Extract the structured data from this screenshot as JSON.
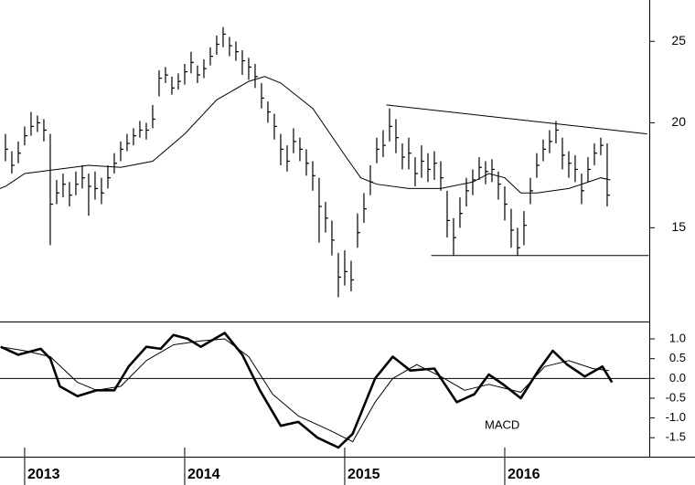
{
  "chart_data": [
    {
      "type": "ohlc",
      "log_scale": true,
      "color": "#000000",
      "xlim": [
        2012.846,
        2016.903
      ],
      "ylim": [
        11.6,
        28
      ],
      "yticks": [
        15,
        20,
        25
      ],
      "x": [
        2012.88,
        2012.92,
        2012.96,
        2013,
        2013.04,
        2013.08,
        2013.12,
        2013.16,
        2013.2,
        2013.24,
        2013.28,
        2013.32,
        2013.36,
        2013.4,
        2013.44,
        2013.48,
        2013.52,
        2013.56,
        2013.6,
        2013.64,
        2013.68,
        2013.72,
        2013.76,
        2013.8,
        2013.84,
        2013.88,
        2013.92,
        2013.96,
        2014,
        2014.04,
        2014.08,
        2014.12,
        2014.16,
        2014.2,
        2014.24,
        2014.28,
        2014.32,
        2014.36,
        2014.4,
        2014.44,
        2014.48,
        2014.52,
        2014.56,
        2014.6,
        2014.64,
        2014.68,
        2014.72,
        2014.76,
        2014.8,
        2014.84,
        2014.88,
        2014.92,
        2014.96,
        2015,
        2015.04,
        2015.08,
        2015.12,
        2015.16,
        2015.2,
        2015.24,
        2015.28,
        2015.32,
        2015.36,
        2015.4,
        2015.44,
        2015.48,
        2015.52,
        2015.56,
        2015.6,
        2015.64,
        2015.68,
        2015.72,
        2015.76,
        2015.8,
        2015.84,
        2015.88,
        2015.92,
        2015.96,
        2016,
        2016.04,
        2016.08,
        2016.12,
        2016.16,
        2016.2,
        2016.24,
        2016.28,
        2016.32,
        2016.36,
        2016.4,
        2016.44,
        2016.48,
        2016.52,
        2016.56,
        2016.6,
        2016.64
      ],
      "high": [
        19.4,
        18.5,
        19.0,
        19.8,
        20.6,
        20.4,
        20.2,
        19.4,
        17.1,
        17.4,
        17.0,
        17.5,
        17.8,
        17.4,
        17.5,
        17.2,
        17.8,
        18.4,
        19.0,
        19.4,
        19.7,
        20.1,
        20,
        21,
        23.1,
        23.3,
        22.7,
        22.9,
        23.5,
        24.3,
        23.4,
        23.8,
        24.6,
        25.4,
        26,
        25.3,
        25,
        24.4,
        23.9,
        23.5,
        22.3,
        21.2,
        20.5,
        19.4,
        18.8,
        19.7,
        19.2,
        18.6,
        18,
        17.2,
        16.1,
        15.3,
        14,
        14.1,
        13.7,
        15.6,
        16.5,
        17.8,
        19.2,
        19.6,
        20.8,
        20.2,
        18.9,
        19.2,
        18.2,
        18.8,
        18.4,
        18.5,
        18,
        16.6,
        15.4,
        16.3,
        17.2,
        17.6,
        18.2,
        18,
        18.1,
        17.5,
        16.8,
        15.8,
        15,
        15.7,
        17.2,
        18.4,
        19.1,
        19.6,
        20.1,
        19.2,
        18.5,
        18.3,
        17.4,
        18.2,
        18.9,
        19.2,
        18.9
      ],
      "low": [
        18,
        17.4,
        17.9,
        18.8,
        19.3,
        19.5,
        19,
        14.3,
        16,
        16.3,
        15.9,
        16.4,
        16.7,
        15.5,
        16.2,
        16,
        16.7,
        17.4,
        18,
        18.5,
        18.8,
        19.2,
        19.1,
        19.7,
        21.5,
        22.3,
        21.6,
        21.9,
        22.2,
        22.9,
        22.3,
        22.6,
        23.4,
        24.1,
        24.6,
        24,
        23.7,
        22.8,
        22.5,
        22,
        20.8,
        20,
        19.1,
        17.8,
        17.5,
        18.4,
        18,
        17.3,
        16.6,
        14.4,
        14.8,
        13.9,
        12.4,
        12.8,
        12.6,
        14.2,
        15.2,
        16.4,
        17.9,
        18.2,
        19,
        18.4,
        17.6,
        17.6,
        16.8,
        17.2,
        17,
        17.1,
        16.6,
        14.6,
        13.9,
        15,
        15.9,
        16.4,
        17.1,
        16.9,
        17,
        16.2,
        15.3,
        14.2,
        13.9,
        14.3,
        16,
        17.2,
        18,
        18.4,
        18.9,
        17.6,
        17.2,
        17,
        16,
        17,
        17.8,
        18.3,
        15.9
      ],
      "close": [
        18.6,
        17.8,
        18.4,
        19.3,
        19.8,
        20,
        19.6,
        16,
        16.5,
        16.9,
        16.4,
        16.9,
        17.2,
        16.8,
        16.7,
        16.5,
        17.2,
        17.9,
        18.6,
        18.9,
        19.3,
        19.6,
        19.6,
        20.2,
        22.6,
        22.8,
        22,
        22.4,
        23,
        23.6,
        22.8,
        23.2,
        24,
        24.8,
        25.5,
        24.7,
        24.3,
        23.7,
        23.3,
        22.7,
        21.4,
        20.6,
        19.8,
        18.6,
        18,
        19,
        18.6,
        17.9,
        17.3,
        15.9,
        15.4,
        14.5,
        13.1,
        13.3,
        13,
        14.8,
        15.8,
        17,
        18.6,
        18.8,
        19.8,
        19.2,
        18.2,
        18.4,
        17.4,
        18,
        17.6,
        17.9,
        17.2,
        15.3,
        14.6,
        15.6,
        16.6,
        17.1,
        17.7,
        17.5,
        17.6,
        16.9,
        16,
        14.9,
        14.2,
        15.1,
        16.6,
        17.8,
        18.6,
        19,
        19.6,
        18.3,
        17.9,
        17.6,
        16.6,
        17.6,
        18.4,
        18.8,
        16.4
      ],
      "moving_average": {
        "x": [
          2012.846,
          2012.88,
          2013,
          2013.2,
          2013.4,
          2013.6,
          2013.8,
          2014,
          2014.2,
          2014.4,
          2014.5,
          2014.6,
          2014.8,
          2015,
          2015.1,
          2015.2,
          2015.4,
          2015.6,
          2015.8,
          2015.9,
          2016,
          2016.1,
          2016.2,
          2016.4,
          2016.6,
          2016.66
        ],
        "values": [
          16.7,
          16.8,
          17.4,
          17.6,
          17.8,
          17.7,
          18,
          19.4,
          21.3,
          22.4,
          22.7,
          22.3,
          20.8,
          18.3,
          17.2,
          16.9,
          16.7,
          16.7,
          17,
          17.4,
          17.2,
          16.5,
          16.5,
          16.7,
          17.2,
          17.1
        ]
      },
      "trendlines": [
        {
          "x": [
            2015.26,
            2016.89
          ],
          "y": [
            21,
            19.4
          ]
        },
        {
          "x": [
            2015.54,
            2016.9
          ],
          "y": [
            13.9,
            13.9
          ]
        }
      ]
    },
    {
      "type": "line",
      "color": "#000000",
      "label": "MACD",
      "xlim": [
        2012.846,
        2016.903
      ],
      "xticks": [
        2013,
        2014,
        2015,
        2016
      ],
      "ylim": [
        -1.98,
        1.44
      ],
      "yticks": [
        {
          "value": 1,
          "label": "1.0"
        },
        0.5,
        {
          "value": 0,
          "label": "0.0"
        },
        -0.5,
        {
          "value": -1,
          "label": "-1.0"
        },
        -1.5
      ],
      "lines": [
        {
          "width": 2.6,
          "x": [
            2012.85,
            2012.96,
            2013.1,
            2013.16,
            2013.22,
            2013.33,
            2013.45,
            2013.56,
            2013.65,
            2013.76,
            2013.85,
            2013.93,
            2014.02,
            2014.1,
            2014.25,
            2014.36,
            2014.47,
            2014.6,
            2014.71,
            2014.83,
            2014.96,
            2015.05,
            2015.19,
            2015.3,
            2015.41,
            2015.56,
            2015.7,
            2015.81,
            2015.9,
            2015.99,
            2016.1,
            2016.21,
            2016.3,
            2016.39,
            2016.5,
            2016.61,
            2016.67
          ],
          "values": [
            0.8,
            0.6,
            0.75,
            0.5,
            -0.2,
            -0.45,
            -0.3,
            -0.3,
            0.3,
            0.8,
            0.75,
            1.1,
            1,
            0.8,
            1.15,
            0.6,
            -0.3,
            -1.2,
            -1.1,
            -1.5,
            -1.75,
            -1.4,
            0,
            0.55,
            0.2,
            0.25,
            -0.6,
            -0.4,
            0.1,
            -0.15,
            -0.5,
            0.2,
            0.7,
            0.35,
            0.05,
            0.3,
            -0.1
          ]
        },
        {
          "width": 1,
          "x": [
            2012.85,
            2013,
            2013.16,
            2013.33,
            2013.45,
            2013.6,
            2013.76,
            2013.93,
            2014.1,
            2014.25,
            2014.4,
            2014.55,
            2014.71,
            2014.9,
            2015.05,
            2015.19,
            2015.3,
            2015.45,
            2015.6,
            2015.75,
            2015.9,
            2016,
            2016.1,
            2016.25,
            2016.4,
            2016.55,
            2016.65
          ],
          "values": [
            0.8,
            0.7,
            0.55,
            -0.1,
            -0.3,
            -0.2,
            0.45,
            0.85,
            0.95,
            1,
            0.55,
            -0.4,
            -0.95,
            -1.3,
            -1.6,
            -0.6,
            0,
            0.35,
            0.05,
            -0.3,
            -0.15,
            -0.25,
            -0.35,
            0.3,
            0.45,
            0.25,
            0.2
          ]
        }
      ]
    }
  ]
}
